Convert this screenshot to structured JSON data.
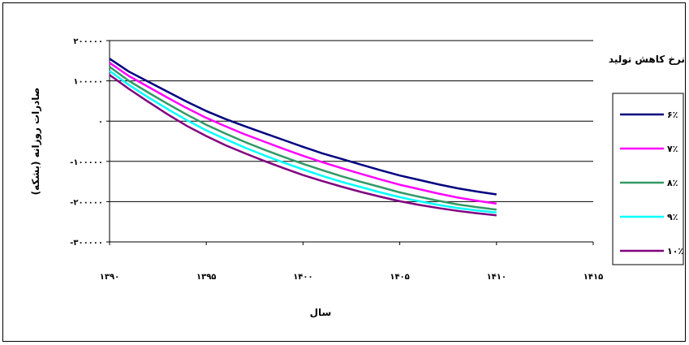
{
  "chart_data": {
    "type": "line",
    "xlabel": "سال",
    "ylabel": "صادرات روزانه (بشکه)",
    "legend_title": "نرخ کاهش تولید",
    "legend_position": "right",
    "grid": true,
    "xlim": [
      1390,
      1415
    ],
    "ylim": [
      -300000,
      200000
    ],
    "x_ticks": [
      1390,
      1395,
      1400,
      1405,
      1410,
      1415
    ],
    "x_tick_labels": [
      "۱۳۹۰",
      "۱۳۹۵",
      "۱۴۰۰",
      "۱۴۰۵",
      "۱۴۱۰",
      "۱۴۱۵"
    ],
    "y_ticks": [
      200000,
      100000,
      0,
      -100000,
      -200000,
      -300000
    ],
    "y_tick_labels": [
      "۲۰۰۰۰۰",
      "۱۰۰۰۰۰",
      "۰",
      "-۱۰۰۰۰۰",
      "-۲۰۰۰۰۰",
      "-۳۰۰۰۰۰"
    ],
    "x": [
      1390,
      1391,
      1392,
      1393,
      1394,
      1395,
      1396,
      1397,
      1398,
      1399,
      1400,
      1401,
      1402,
      1403,
      1404,
      1405,
      1406,
      1407,
      1408,
      1409,
      1410
    ],
    "series": [
      {
        "name": "۶٪",
        "color": "#000080",
        "values": [
          155000,
          123000,
          98000,
          73000,
          48000,
          25000,
          5000,
          -13000,
          -30000,
          -47000,
          -64000,
          -80000,
          -94000,
          -108000,
          -122000,
          -135000,
          -146000,
          -157000,
          -167000,
          -175000,
          -182000
        ]
      },
      {
        "name": "۷٪",
        "color": "#ff00ff",
        "values": [
          145000,
          112000,
          85000,
          58000,
          32000,
          8000,
          -13000,
          -33000,
          -51000,
          -69000,
          -86000,
          -102000,
          -117000,
          -131000,
          -145000,
          -158000,
          -169000,
          -180000,
          -190000,
          -198000,
          -205000
        ]
      },
      {
        "name": "۸٪",
        "color": "#339966",
        "values": [
          135000,
          100000,
          71000,
          43000,
          16000,
          -9000,
          -31000,
          -52000,
          -71000,
          -89000,
          -106000,
          -122000,
          -137000,
          -151000,
          -164000,
          -177000,
          -188000,
          -198000,
          -207000,
          -214000,
          -220000
        ]
      },
      {
        "name": "۹٪",
        "color": "#00ffff",
        "values": [
          125000,
          90000,
          59000,
          30000,
          2000,
          -23000,
          -45000,
          -66000,
          -85000,
          -103000,
          -120000,
          -136000,
          -151000,
          -164000,
          -177000,
          -189000,
          -199000,
          -208000,
          -216000,
          -222000,
          -227000
        ]
      },
      {
        "name": "۱۰٪",
        "color": "#800080",
        "values": [
          115000,
          80000,
          48000,
          17000,
          -12000,
          -37000,
          -60000,
          -80000,
          -99000,
          -117000,
          -134000,
          -149000,
          -163000,
          -176000,
          -188000,
          -199000,
          -208000,
          -216000,
          -223000,
          -229000,
          -234000
        ]
      }
    ]
  }
}
